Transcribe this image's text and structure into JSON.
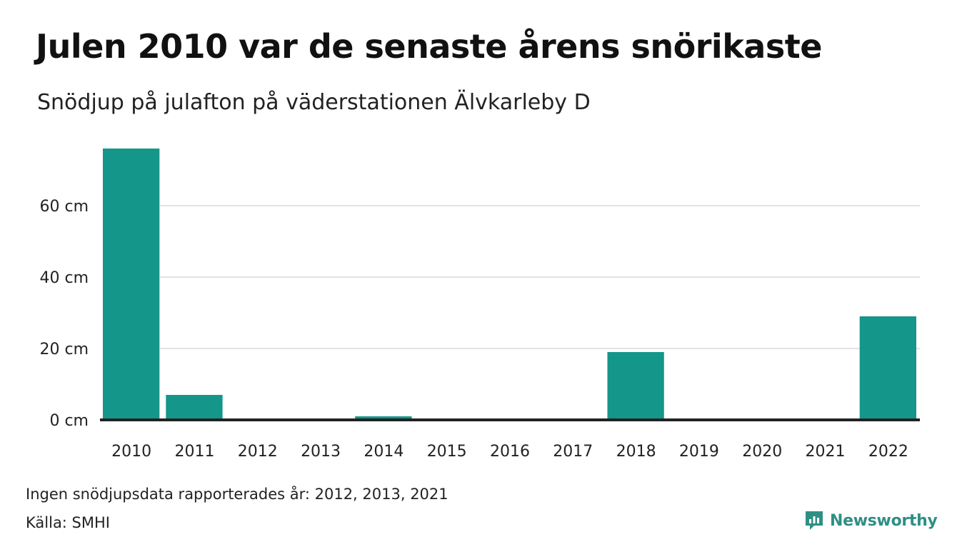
{
  "title": "Julen 2010 var de senaste årens snörikaste",
  "subtitle": "Snödjup på julafton på väderstationen Älvkarleby D",
  "footer": {
    "note": "Ingen snödjupsdata rapporterades år: 2012, 2013, 2021",
    "source": "Källa: SMHI"
  },
  "brand": {
    "name": "Newsworthy",
    "icon": "newsworthy-logo-icon",
    "color": "#2f8f85"
  },
  "colors": {
    "bar": "#14968a",
    "grid": "#e3e3e3",
    "baseline": "#222222"
  },
  "chart_data": {
    "type": "bar",
    "title": "Julen 2010 var de senaste årens snörikaste",
    "subtitle": "Snödjup på julafton på väderstationen Älvkarleby D",
    "categories": [
      "2010",
      "2011",
      "2012",
      "2013",
      "2014",
      "2015",
      "2016",
      "2017",
      "2018",
      "2019",
      "2020",
      "2021",
      "2022"
    ],
    "values": [
      76,
      7,
      null,
      null,
      1,
      0,
      0,
      0,
      19,
      0,
      0,
      null,
      29
    ],
    "ylim": [
      0,
      80
    ],
    "yticks": [
      0,
      20,
      40,
      60
    ],
    "ytick_labels": [
      "0 cm",
      "20 cm",
      "40 cm",
      "60 cm"
    ],
    "grid": true,
    "legend": "none"
  }
}
